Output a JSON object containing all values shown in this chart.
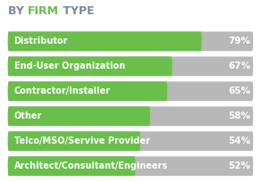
{
  "title_part1": "BY ",
  "title_part2": "FIRM",
  "title_part3": " TYPE",
  "title_color_normal": "#7a8a9a",
  "title_color_green": "#6abf4b",
  "categories": [
    "Distributor",
    "End-User Organization",
    "Contractor/Installer",
    "Other",
    "Telco/MSO/Servive Provider",
    "Architect/Consultant/Engineers"
  ],
  "values": [
    79,
    67,
    65,
    58,
    54,
    52
  ],
  "max_value": 100,
  "bar_height": 0.78,
  "bar_gap": 0.22,
  "green_color": "#6abf4b",
  "gray_color": "#b8b8b8",
  "bg_color": "#ffffff",
  "label_color": "#ffffff",
  "pct_color": "#ffffff",
  "title_fontsize": 9,
  "label_fontsize": 7,
  "pct_fontsize": 7.5
}
